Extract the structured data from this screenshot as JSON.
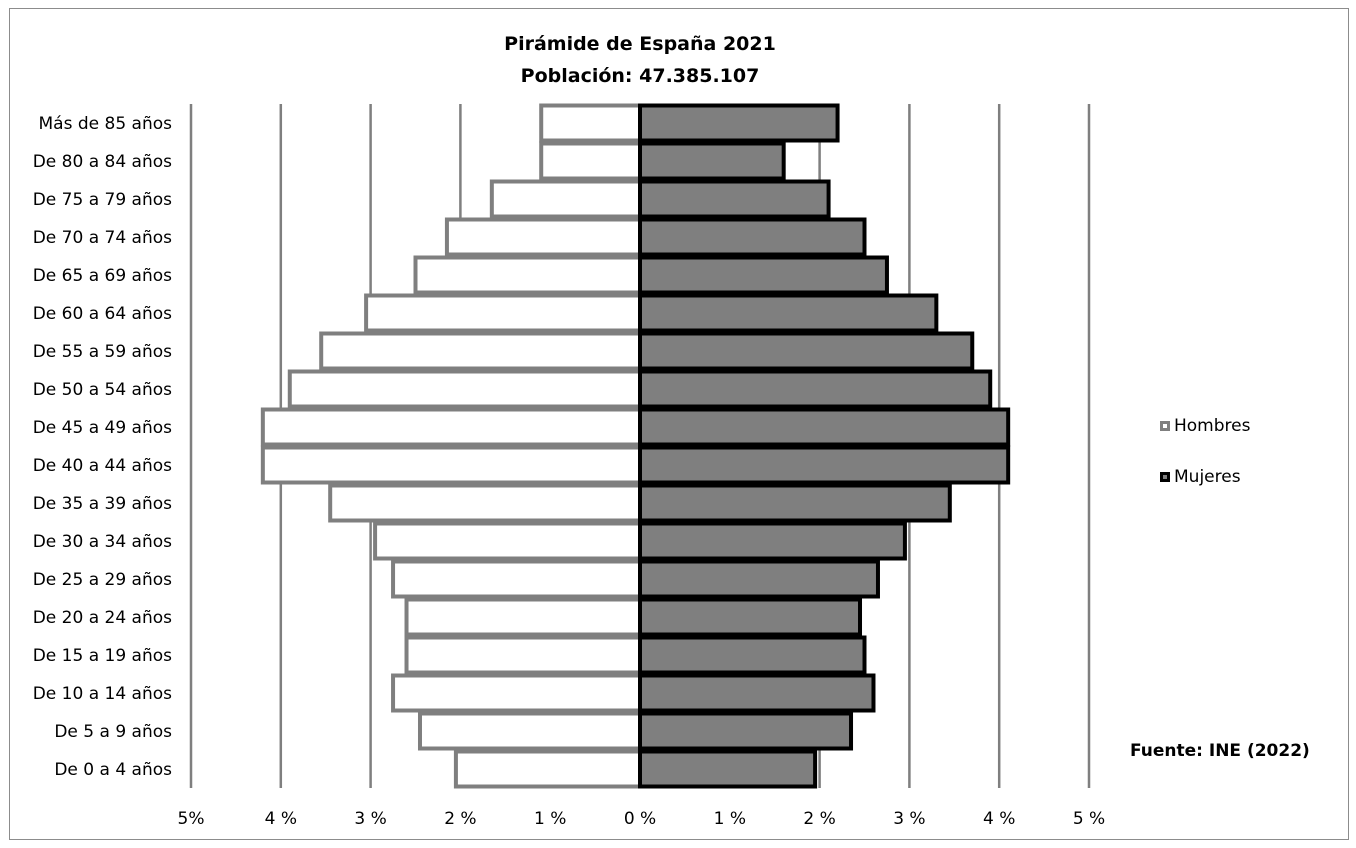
{
  "chart_data": {
    "type": "bar",
    "orientation": "horizontal",
    "layout": "population-pyramid",
    "title": "Pirámide de España 2021",
    "subtitle": "Población: 47.385.107",
    "source": "Fuente: INE (2022)",
    "categories": [
      "Más de 85 años",
      "De 80 a 84 años",
      "De 75 a 79 años",
      "De 70 a 74 años",
      "De 65 a 69 años",
      "De 60 a 64 años",
      "De 55 a 59 años",
      "De 50 a 54 años",
      "De 45 a 49 años",
      "De 40 a 44 años",
      "De 35 a 39 años",
      "De 30 a 34 años",
      "De 25 a 29 años",
      "De 20 a 24 años",
      "De 15 a 19 años",
      "De 10 a 14 años",
      "De 5 a 9 años",
      "De 0 a 4 años"
    ],
    "series": [
      {
        "name": "Hombres",
        "side": "left",
        "fill": "#ffffff",
        "stroke": "#7f7f7f",
        "values": [
          1.1,
          1.1,
          1.65,
          2.15,
          2.5,
          3.05,
          3.55,
          3.9,
          4.2,
          4.2,
          3.45,
          2.95,
          2.75,
          2.6,
          2.6,
          2.75,
          2.45,
          2.05
        ]
      },
      {
        "name": "Mujeres",
        "side": "right",
        "fill": "#7f7f7f",
        "stroke": "#000000",
        "values": [
          2.2,
          1.6,
          2.1,
          2.5,
          2.75,
          3.3,
          3.7,
          3.9,
          4.1,
          4.1,
          3.45,
          2.95,
          2.65,
          2.45,
          2.5,
          2.6,
          2.35,
          1.95
        ]
      }
    ],
    "xlim": [
      -5,
      5
    ],
    "x_ticks": [
      {
        "value": -5,
        "label": "5%"
      },
      {
        "value": -4,
        "label": "4 %"
      },
      {
        "value": -3,
        "label": "3 %"
      },
      {
        "value": -2,
        "label": "2 %"
      },
      {
        "value": -1,
        "label": "1 %"
      },
      {
        "value": 0,
        "label": "0 %"
      },
      {
        "value": 1,
        "label": "1 %"
      },
      {
        "value": 2,
        "label": "2 %"
      },
      {
        "value": 3,
        "label": "3 %"
      },
      {
        "value": 4,
        "label": "4 %"
      },
      {
        "value": 5,
        "label": "5 %"
      }
    ],
    "grid": "vertical",
    "legend_position": "right"
  }
}
